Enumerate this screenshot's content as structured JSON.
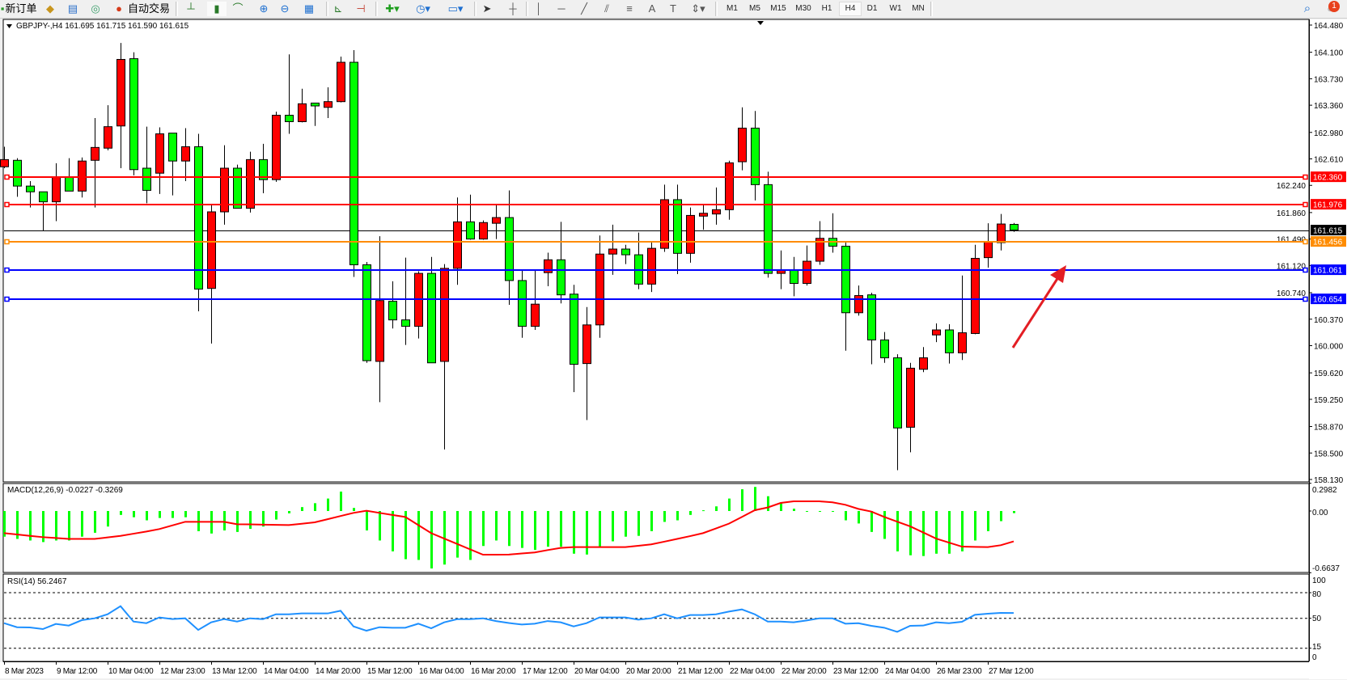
{
  "toolbar": {
    "new_order": "新订单",
    "auto_trading": "自动交易",
    "timeframes": [
      "M1",
      "M5",
      "M15",
      "M30",
      "H1",
      "H4",
      "D1",
      "W1",
      "MN"
    ],
    "active_timeframe": "H4",
    "notification_count": "1",
    "icons": [
      "gold-icon",
      "terminal-icon",
      "signals-icon",
      "auto-trading-icon",
      "bar-chart-icon",
      "candlestick-icon",
      "line-chart-icon",
      "zoom-in-icon",
      "zoom-out-icon",
      "tile-windows-icon",
      "auto-scroll-icon",
      "chart-shift-icon",
      "new-chart-icon",
      "periods-icon",
      "templates-icon",
      "cursor-icon",
      "crosshair-icon",
      "vertical-line-icon",
      "horizontal-line-icon",
      "trendline-icon",
      "equidistant-channel-icon",
      "fibonacci-icon",
      "text-icon",
      "text-label-icon",
      "arrows-icon",
      "search-icon",
      "notification-icon"
    ]
  },
  "chart": {
    "header": "GBPJPY-,H4  161.695 161.715 161.590 161.615",
    "bull_color": "#ff0000",
    "bear_color": "#00ff00"
  },
  "chart_data": [
    {
      "type": "candlestick",
      "symbol": "GBPJPY-",
      "timeframe": "H4",
      "ylim": [
        158.13,
        164.48
      ],
      "y_ticks": [
        "164.480",
        "164.100",
        "163.730",
        "163.360",
        "162.980",
        "162.610",
        "162.240",
        "161.860",
        "161.490",
        "161.120",
        "160.740",
        "160.370",
        "160.000",
        "159.620",
        "159.250",
        "158.870",
        "158.500",
        "158.130"
      ],
      "x_tick_labels": [
        "8 Mar 2023",
        "9 Mar 12:00",
        "10 Mar 04:00",
        "12 Mar 23:00",
        "13 Mar 12:00",
        "14 Mar 04:00",
        "14 Mar 20:00",
        "15 Mar 12:00",
        "16 Mar 04:00",
        "16 Mar 20:00",
        "17 Mar 12:00",
        "20 Mar 04:00",
        "20 Mar 20:00",
        "21 Mar 12:00",
        "22 Mar 04:00",
        "22 Mar 20:00",
        "23 Mar 12:00",
        "24 Mar 04:00",
        "26 Mar 23:00",
        "27 Mar 12:00"
      ],
      "bid_line": {
        "price": 161.615,
        "label": "161.615",
        "color": "#000000"
      },
      "price_lines": [
        {
          "price": 162.36,
          "label": "162.360",
          "color": "#ff0000"
        },
        {
          "price": 161.976,
          "label": "161.976",
          "color": "#ff0000"
        },
        {
          "price": 161.456,
          "label": "161.456",
          "color": "#ff8c00"
        },
        {
          "price": 161.061,
          "label": "161.061",
          "color": "#0000ff"
        },
        {
          "price": 160.654,
          "label": "160.654",
          "color": "#0000ff"
        }
      ],
      "annotation": {
        "type": "arrow",
        "color": "#e31e24",
        "direction": "up-right"
      },
      "ohlc": [
        [
          162.5,
          162.78,
          162.48,
          162.6
        ],
        [
          162.59,
          162.62,
          162.08,
          162.23
        ],
        [
          162.23,
          162.3,
          161.93,
          162.15
        ],
        [
          162.15,
          162.15,
          161.6,
          162.01
        ],
        [
          162.01,
          162.55,
          161.74,
          162.35
        ],
        [
          162.36,
          162.62,
          162.16,
          162.16
        ],
        [
          162.16,
          162.63,
          162.07,
          162.58
        ],
        [
          162.59,
          163.18,
          161.93,
          162.77
        ],
        [
          162.76,
          163.36,
          162.73,
          163.06
        ],
        [
          163.07,
          164.23,
          162.48,
          164.0
        ],
        [
          164.01,
          164.1,
          162.38,
          162.46
        ],
        [
          162.48,
          163.06,
          161.99,
          162.17
        ],
        [
          162.41,
          163.05,
          162.12,
          162.96
        ],
        [
          162.97,
          162.97,
          162.1,
          162.58
        ],
        [
          162.58,
          163.04,
          162.3,
          162.78
        ],
        [
          162.78,
          162.96,
          160.48,
          160.79
        ],
        [
          160.8,
          161.98,
          160.03,
          161.87
        ],
        [
          161.87,
          162.8,
          161.69,
          162.48
        ],
        [
          162.48,
          162.53,
          161.92,
          161.92
        ],
        [
          161.92,
          162.71,
          161.86,
          162.6
        ],
        [
          162.6,
          162.82,
          162.13,
          162.32
        ],
        [
          162.32,
          163.27,
          162.29,
          163.22
        ],
        [
          163.22,
          164.07,
          162.96,
          163.13
        ],
        [
          163.13,
          163.59,
          163.12,
          163.38
        ],
        [
          163.39,
          163.39,
          163.07,
          163.35
        ],
        [
          163.33,
          163.61,
          163.18,
          163.41
        ],
        [
          163.41,
          164.04,
          163.4,
          163.96
        ],
        [
          163.96,
          164.13,
          160.96,
          161.13
        ],
        [
          161.13,
          161.17,
          159.76,
          159.79
        ],
        [
          159.78,
          161.53,
          159.21,
          160.63
        ],
        [
          160.62,
          160.9,
          160.24,
          160.36
        ],
        [
          160.36,
          161.23,
          160.01,
          160.27
        ],
        [
          160.27,
          161.04,
          160.1,
          161.01
        ],
        [
          161.01,
          161.24,
          159.76,
          159.76
        ],
        [
          159.78,
          161.14,
          158.55,
          161.08
        ],
        [
          161.08,
          162.07,
          160.85,
          161.73
        ],
        [
          161.73,
          162.11,
          161.48,
          161.49
        ],
        [
          161.49,
          161.75,
          161.48,
          161.72
        ],
        [
          161.71,
          161.98,
          161.49,
          161.79
        ],
        [
          161.79,
          162.17,
          160.57,
          160.91
        ],
        [
          160.91,
          161.06,
          160.11,
          160.27
        ],
        [
          160.27,
          161.06,
          160.22,
          160.58
        ],
        [
          161.02,
          161.3,
          160.83,
          161.2
        ],
        [
          161.2,
          161.73,
          160.59,
          160.71
        ],
        [
          160.72,
          160.85,
          159.35,
          159.74
        ],
        [
          159.75,
          160.54,
          158.96,
          160.29
        ],
        [
          160.29,
          161.54,
          160.11,
          161.28
        ],
        [
          161.28,
          161.69,
          160.99,
          161.35
        ],
        [
          161.35,
          161.41,
          161.14,
          161.27
        ],
        [
          161.27,
          161.58,
          160.79,
          160.86
        ],
        [
          160.86,
          161.44,
          160.75,
          161.36
        ],
        [
          161.36,
          162.25,
          161.31,
          162.04
        ],
        [
          162.04,
          162.25,
          161.0,
          161.29
        ],
        [
          161.29,
          161.93,
          161.16,
          161.82
        ],
        [
          161.81,
          161.96,
          161.62,
          161.85
        ],
        [
          161.84,
          162.21,
          161.69,
          161.9
        ],
        [
          161.9,
          162.585,
          161.76,
          162.555
        ],
        [
          162.57,
          163.33,
          162.45,
          163.04
        ],
        [
          163.04,
          163.28,
          162.03,
          162.25
        ],
        [
          162.25,
          162.43,
          160.95,
          161.01
        ],
        [
          161.01,
          161.33,
          160.79,
          161.06
        ],
        [
          161.06,
          161.24,
          160.69,
          160.87
        ],
        [
          160.87,
          161.4,
          160.84,
          161.18
        ],
        [
          161.18,
          161.74,
          161.13,
          161.5
        ],
        [
          161.5,
          161.85,
          161.3,
          161.39
        ],
        [
          161.39,
          161.44,
          159.93,
          160.46
        ],
        [
          160.46,
          160.84,
          160.42,
          160.7
        ],
        [
          160.71,
          160.74,
          159.74,
          160.08
        ],
        [
          160.08,
          160.19,
          159.76,
          159.83
        ],
        [
          159.83,
          159.88,
          158.26,
          158.85
        ],
        [
          158.86,
          159.76,
          158.51,
          159.685
        ],
        [
          159.67,
          159.98,
          159.63,
          159.83
        ],
        [
          160.15,
          160.31,
          160.05,
          160.22
        ],
        [
          160.22,
          160.3,
          159.75,
          159.9
        ],
        [
          159.9,
          160.98,
          159.8,
          160.18
        ],
        [
          160.17,
          161.41,
          160.16,
          161.22
        ],
        [
          161.23,
          161.71,
          161.09,
          161.45
        ],
        [
          161.44,
          161.84,
          161.33,
          161.7
        ],
        [
          161.695,
          161.715,
          161.59,
          161.615
        ]
      ]
    },
    {
      "type": "bar+line",
      "title": "MACD(12,26,9) -0.0227 -0.3269",
      "ylim": [
        -0.6637,
        0.2982
      ],
      "y_ticks": [
        "0.2982",
        "0.00",
        "-0.6637"
      ],
      "histogram_color": "#00ff00",
      "signal_color": "#ff0000",
      "macd": [
        -0.276,
        -0.3,
        -0.317,
        -0.334,
        -0.317,
        -0.317,
        -0.276,
        -0.234,
        -0.167,
        -0.042,
        -0.067,
        -0.1,
        -0.075,
        -0.075,
        -0.067,
        -0.217,
        -0.242,
        -0.209,
        -0.225,
        -0.192,
        -0.167,
        -0.092,
        -0.025,
        0.042,
        0.084,
        0.134,
        0.209,
        0.033,
        -0.209,
        -0.317,
        -0.434,
        -0.518,
        -0.526,
        -0.618,
        -0.576,
        -0.501,
        -0.526,
        -0.376,
        -0.317,
        -0.376,
        -0.397,
        -0.418,
        -0.384,
        -0.384,
        -0.459,
        -0.468,
        -0.384,
        -0.326,
        -0.276,
        -0.267,
        -0.217,
        -0.117,
        -0.1,
        -0.042,
        0.008,
        0.05,
        0.134,
        0.234,
        0.259,
        0.159,
        0.084,
        0.025,
        -0.008,
        -0.008,
        -0.008,
        -0.1,
        -0.134,
        -0.225,
        -0.3,
        -0.434,
        -0.476,
        -0.484,
        -0.459,
        -0.459,
        -0.434,
        -0.317,
        -0.217,
        -0.109,
        -0.0227
      ],
      "signal": [
        -0.238,
        -0.252,
        -0.267,
        -0.281,
        -0.29,
        -0.3,
        -0.3,
        -0.3,
        -0.284,
        -0.267,
        -0.244,
        -0.221,
        -0.194,
        -0.155,
        -0.116,
        -0.116,
        -0.116,
        -0.116,
        -0.142,
        -0.144,
        -0.147,
        -0.149,
        -0.151,
        -0.137,
        -0.122,
        -0.088,
        -0.054,
        -0.02,
        0.003,
        -0.02,
        -0.042,
        -0.064,
        -0.151,
        -0.238,
        -0.296,
        -0.354,
        -0.412,
        -0.47,
        -0.47,
        -0.468,
        -0.457,
        -0.446,
        -0.42,
        -0.397,
        -0.388,
        -0.388,
        -0.388,
        -0.388,
        -0.388,
        -0.374,
        -0.359,
        -0.33,
        -0.3,
        -0.27,
        -0.238,
        -0.187,
        -0.136,
        -0.064,
        0.009,
        0.038,
        0.087,
        0.104,
        0.104,
        0.104,
        0.093,
        0.067,
        0.023,
        -0.006,
        -0.064,
        -0.115,
        -0.165,
        -0.23,
        -0.296,
        -0.34,
        -0.383,
        -0.386,
        -0.388,
        -0.368,
        -0.3269
      ]
    },
    {
      "type": "line",
      "title": "RSI(14) 56.2467",
      "ylim": [
        0,
        100
      ],
      "y_ticks": [
        "100",
        "80",
        "50",
        "15",
        "0"
      ],
      "levels": [
        80,
        50,
        15
      ],
      "color": "#1e90ff",
      "values": [
        44.3,
        39.6,
        39.3,
        37.4,
        43.4,
        41.5,
        47.8,
        50,
        54.7,
        64.2,
        46.2,
        44.3,
        51,
        49.1,
        50,
        36.4,
        45.3,
        49.1,
        46.2,
        50,
        49,
        54.7,
        54.7,
        55.7,
        55.7,
        55.7,
        58.8,
        40.5,
        35.5,
        39.6,
        39,
        39,
        43.7,
        38.3,
        45.3,
        49,
        49,
        50,
        46.8,
        44.5,
        42.7,
        43.7,
        46.8,
        45.3,
        40.5,
        44.3,
        51,
        51,
        51,
        48.4,
        50,
        54.7,
        50,
        53.8,
        53.8,
        54.7,
        57.9,
        60.4,
        54.7,
        46.2,
        46.2,
        45.3,
        47.5,
        50,
        50,
        43.7,
        44.3,
        41.2,
        39,
        34.2,
        41.2,
        41.5,
        45.3,
        44.3,
        45.9,
        54.1,
        55.4,
        56.3,
        56.2467
      ]
    }
  ]
}
